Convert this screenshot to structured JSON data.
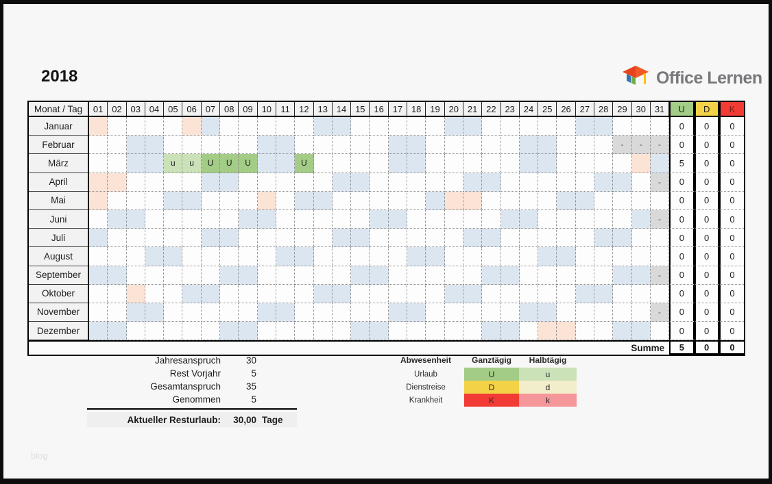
{
  "title": "2018",
  "logo": {
    "text": "Office Lernen"
  },
  "watermark": "blog",
  "colors": {
    "weekend": "#dce6f1",
    "holiday": "#fbe3d5",
    "invalid": "#d9d9d9",
    "vacation_full": "#a3cc86",
    "vacation_half": "#cbe2b8",
    "trip_full": "#f4d248",
    "trip_half": "#f2edca",
    "sick_full": "#f23b35",
    "sick_half": "#f5969a",
    "header_u": "#a3cc86",
    "header_d": "#f4d248",
    "header_k": "#f23b35"
  },
  "calendar": {
    "corner_label": "Monat / Tag",
    "day_headers": [
      "01",
      "02",
      "03",
      "04",
      "05",
      "06",
      "07",
      "08",
      "09",
      "10",
      "11",
      "12",
      "13",
      "14",
      "15",
      "16",
      "17",
      "18",
      "19",
      "20",
      "21",
      "22",
      "23",
      "24",
      "25",
      "26",
      "27",
      "28",
      "29",
      "30",
      "31"
    ],
    "type_headers": [
      "U",
      "D",
      "K"
    ],
    "months": [
      {
        "name": "Januar",
        "weekends": [
          7,
          13,
          14,
          20,
          21,
          27,
          28
        ],
        "holidays": [
          1,
          6
        ],
        "invalid": [],
        "entries": {},
        "u": 0,
        "d": 0,
        "k": 0
      },
      {
        "name": "Februar",
        "weekends": [
          3,
          4,
          10,
          11,
          17,
          18,
          24,
          25
        ],
        "holidays": [],
        "invalid": [
          29,
          30,
          31
        ],
        "entries": {},
        "u": 0,
        "d": 0,
        "k": 0
      },
      {
        "name": "März",
        "weekends": [
          3,
          4,
          10,
          11,
          17,
          18,
          24,
          25,
          31
        ],
        "holidays": [
          30
        ],
        "invalid": [],
        "entries": {
          "5": "u",
          "6": "u",
          "7": "U",
          "8": "U",
          "9": "U",
          "12": "U"
        },
        "u": 5,
        "d": 0,
        "k": 0
      },
      {
        "name": "April",
        "weekends": [
          7,
          8,
          14,
          15,
          21,
          22,
          28,
          29
        ],
        "holidays": [
          1,
          2
        ],
        "invalid": [
          31
        ],
        "entries": {},
        "u": 0,
        "d": 0,
        "k": 0
      },
      {
        "name": "Mai",
        "weekends": [
          5,
          6,
          12,
          13,
          19,
          26,
          27
        ],
        "holidays": [
          1,
          10,
          20,
          21
        ],
        "invalid": [],
        "entries": {},
        "u": 0,
        "d": 0,
        "k": 0
      },
      {
        "name": "Juni",
        "weekends": [
          2,
          3,
          9,
          10,
          16,
          17,
          23,
          24,
          30
        ],
        "holidays": [],
        "invalid": [
          31
        ],
        "entries": {},
        "u": 0,
        "d": 0,
        "k": 0
      },
      {
        "name": "Juli",
        "weekends": [
          1,
          7,
          8,
          14,
          15,
          21,
          22,
          28,
          29
        ],
        "holidays": [],
        "invalid": [],
        "entries": {},
        "u": 0,
        "d": 0,
        "k": 0
      },
      {
        "name": "August",
        "weekends": [
          4,
          5,
          11,
          12,
          18,
          19,
          25,
          26
        ],
        "holidays": [],
        "invalid": [],
        "entries": {},
        "u": 0,
        "d": 0,
        "k": 0
      },
      {
        "name": "September",
        "weekends": [
          1,
          2,
          8,
          9,
          15,
          16,
          22,
          23,
          29,
          30
        ],
        "holidays": [],
        "invalid": [
          31
        ],
        "entries": {},
        "u": 0,
        "d": 0,
        "k": 0
      },
      {
        "name": "Oktober",
        "weekends": [
          6,
          7,
          13,
          14,
          20,
          21,
          27,
          28
        ],
        "holidays": [
          3
        ],
        "invalid": [],
        "entries": {},
        "u": 0,
        "d": 0,
        "k": 0
      },
      {
        "name": "November",
        "weekends": [
          3,
          4,
          10,
          11,
          17,
          18,
          24,
          25
        ],
        "holidays": [],
        "invalid": [
          31
        ],
        "entries": {},
        "u": 0,
        "d": 0,
        "k": 0
      },
      {
        "name": "Dezember",
        "weekends": [
          1,
          2,
          8,
          9,
          15,
          16,
          22,
          23,
          29,
          30
        ],
        "holidays": [
          25,
          26
        ],
        "invalid": [],
        "entries": {},
        "u": 0,
        "d": 0,
        "k": 0
      }
    ],
    "summe_label": "Summe",
    "summe": [
      "5",
      "0",
      "0"
    ]
  },
  "summary": {
    "rows": [
      {
        "label": "Jahresanspruch",
        "value": "30"
      },
      {
        "label": "Rest Vorjahr",
        "value": "5"
      },
      {
        "label": "Gesamtanspruch",
        "value": "35"
      },
      {
        "label": "Genommen",
        "value": "5"
      }
    ],
    "total_label": "Aktueller Resturlaub:",
    "total_value": "30,00",
    "total_unit": "Tage"
  },
  "legend": {
    "col_headers": [
      "Abwesenheit",
      "Ganztägig",
      "Halbtägig"
    ],
    "rows": [
      {
        "label": "Urlaub",
        "full": "U",
        "half": "u",
        "full_key": "vacation_full",
        "half_key": "vacation_half"
      },
      {
        "label": "Dienstreise",
        "full": "D",
        "half": "d",
        "full_key": "trip_full",
        "half_key": "trip_half"
      },
      {
        "label": "Krankheit",
        "full": "K",
        "half": "k",
        "full_key": "sick_full",
        "half_key": "sick_half"
      }
    ]
  }
}
